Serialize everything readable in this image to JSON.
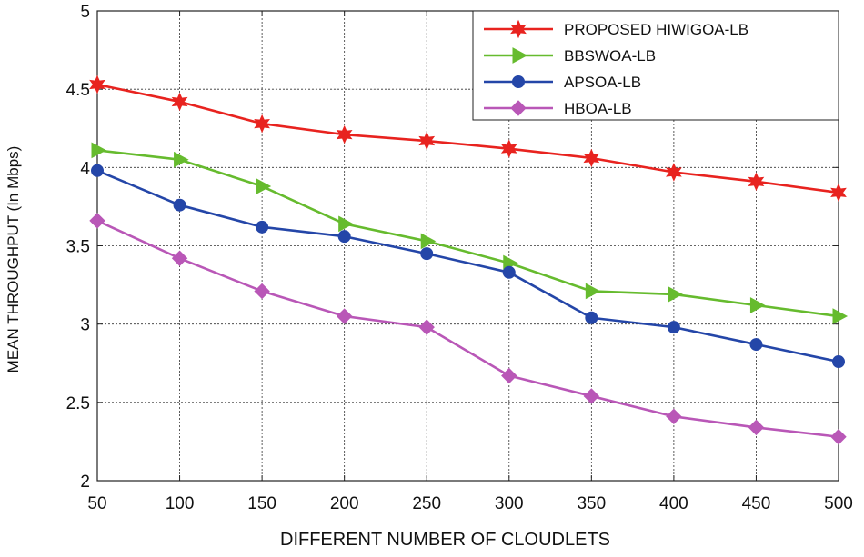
{
  "chart_data": {
    "type": "line",
    "title": "",
    "xlabel": "DIFFERENT NUMBER OF CLOUDLETS",
    "ylabel": "MEAN THROUGHPUT (In Mbps)",
    "x": [
      50,
      100,
      150,
      200,
      250,
      300,
      350,
      400,
      450,
      500
    ],
    "xlim": [
      50,
      500
    ],
    "ylim": [
      2,
      5
    ],
    "x_ticks": [
      "50",
      "100",
      "150",
      "200",
      "250",
      "300",
      "350",
      "400",
      "450",
      "500"
    ],
    "y_ticks": [
      "2",
      "2.5",
      "3",
      "3.5",
      "4",
      "4.5",
      "5"
    ],
    "grid": true,
    "legend_position": "top-right",
    "series": [
      {
        "name": "PROPOSED HIWIGOA-LB",
        "color": "#e8231f",
        "marker": "star",
        "values": [
          4.53,
          4.42,
          4.28,
          4.21,
          4.17,
          4.12,
          4.06,
          3.97,
          3.91,
          3.84
        ]
      },
      {
        "name": "BBSWOA-LB",
        "color": "#66bb2e",
        "marker": "triangle-right",
        "values": [
          4.11,
          4.05,
          3.88,
          3.64,
          3.53,
          3.39,
          3.21,
          3.19,
          3.12,
          3.05
        ]
      },
      {
        "name": "APSOA-LB",
        "color": "#2446a8",
        "marker": "circle",
        "values": [
          3.98,
          3.76,
          3.62,
          3.56,
          3.45,
          3.33,
          3.04,
          2.98,
          2.87,
          2.76
        ]
      },
      {
        "name": "HBOA-LB",
        "color": "#b957b7",
        "marker": "diamond",
        "values": [
          3.66,
          3.42,
          3.21,
          3.05,
          2.98,
          2.67,
          2.54,
          2.41,
          2.34,
          2.28
        ]
      }
    ]
  }
}
